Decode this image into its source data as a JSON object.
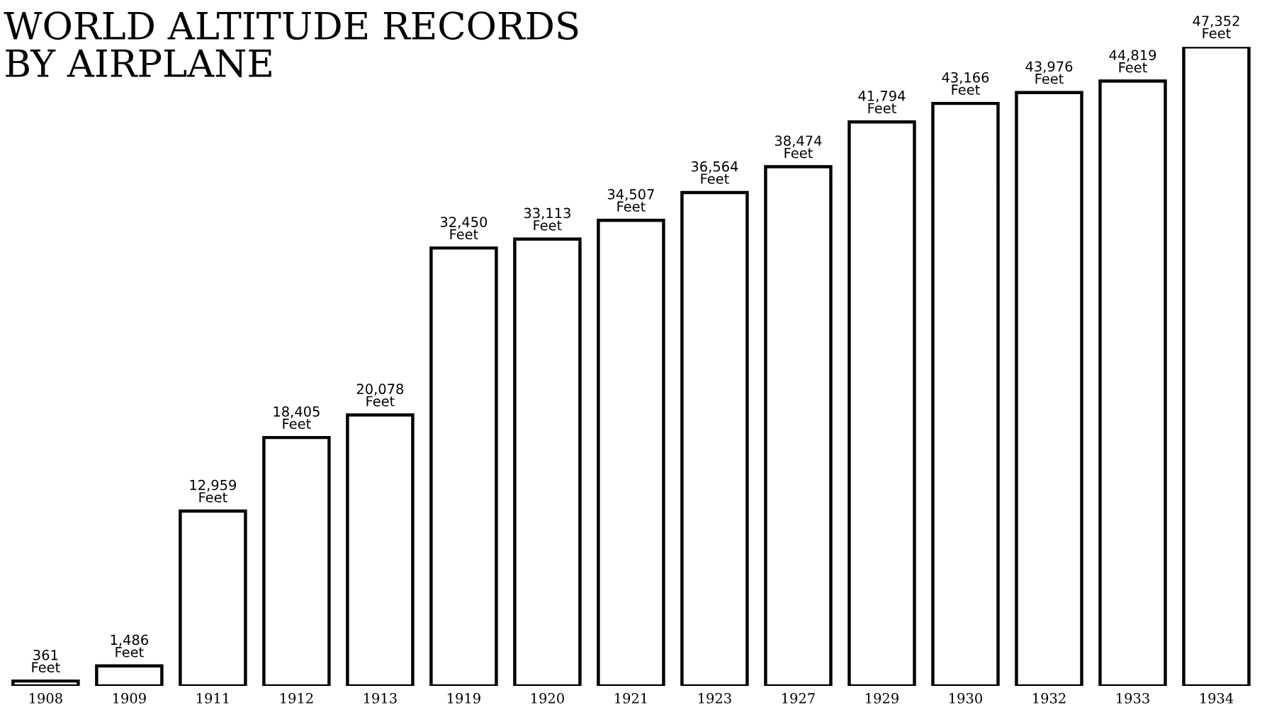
{
  "chart_data": {
    "type": "bar",
    "title": "WORLD ALTITUDE RECORDS\nBY AIRPLANE",
    "categories": [
      "1908",
      "1909",
      "1911",
      "1912",
      "1913",
      "1919",
      "1920",
      "1921",
      "1923",
      "1927",
      "1929",
      "1930",
      "1932",
      "1933",
      "1934"
    ],
    "values": [
      361,
      1486,
      12959,
      18405,
      20078,
      32450,
      33113,
      34507,
      36564,
      38474,
      41794,
      43166,
      43976,
      44819,
      47352
    ],
    "value_labels": [
      "361\nFeet",
      "1,486\nFeet",
      "12,959\nFeet",
      "18,405\nFeet",
      "20,078\nFeet",
      "32,450\nFeet",
      "33,113\nFeet",
      "34,507\nFeet",
      "36,564\nFeet",
      "38,474\nFeet",
      "41,794\nFeet",
      "43,166\nFeet",
      "43,976\nFeet",
      "44,819\nFeet",
      "47,352\nFeet"
    ],
    "color": "#ffffff",
    "grid": false,
    "tick_labels": "x"
  }
}
